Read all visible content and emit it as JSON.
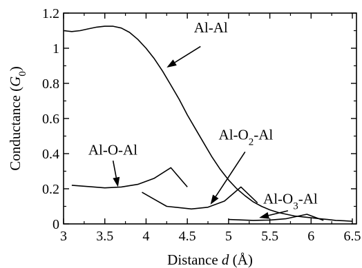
{
  "chart_data": {
    "type": "line",
    "xlabel_pre": "Distance ",
    "xlabel_var": "d",
    "xlabel_post": " (Å)",
    "ylabel_pre": "Conductance (",
    "ylabel_var": "G",
    "ylabel_sub": "0",
    "ylabel_post": ")",
    "xlim": [
      3,
      6.55
    ],
    "ylim": [
      0,
      1.2
    ],
    "xticks": [
      3,
      3.5,
      4,
      4.5,
      5,
      5.5,
      6,
      6.5
    ],
    "xtick_labels": [
      "3",
      "3.5",
      "4",
      "4.5",
      "5",
      "5.5",
      "6",
      "6.5"
    ],
    "yticks": [
      0,
      0.2,
      0.4,
      0.6,
      0.8,
      1.0,
      1.2
    ],
    "ytick_labels": [
      "0",
      "0.2",
      "0.4",
      "0.6",
      "0.8",
      "1",
      "1.2"
    ],
    "grid": false,
    "legend": "none",
    "series": [
      {
        "id": "al-al",
        "segments": [
          [
            [
              3.0,
              1.1
            ],
            [
              3.1,
              1.095
            ],
            [
              3.2,
              1.1
            ],
            [
              3.3,
              1.11
            ],
            [
              3.4,
              1.12
            ],
            [
              3.5,
              1.125
            ],
            [
              3.6,
              1.125
            ],
            [
              3.7,
              1.115
            ],
            [
              3.8,
              1.09
            ],
            [
              3.9,
              1.05
            ],
            [
              4.0,
              1.0
            ],
            [
              4.1,
              0.94
            ],
            [
              4.2,
              0.87
            ],
            [
              4.3,
              0.79
            ],
            [
              4.4,
              0.71
            ],
            [
              4.5,
              0.62
            ],
            [
              4.6,
              0.54
            ],
            [
              4.7,
              0.46
            ],
            [
              4.8,
              0.38
            ],
            [
              4.9,
              0.31
            ],
            [
              5.0,
              0.25
            ],
            [
              5.1,
              0.2
            ],
            [
              5.2,
              0.16
            ],
            [
              5.3,
              0.125
            ],
            [
              5.4,
              0.1
            ],
            [
              5.5,
              0.08
            ],
            [
              5.6,
              0.065
            ],
            [
              5.7,
              0.055
            ],
            [
              5.8,
              0.045
            ],
            [
              5.9,
              0.04
            ],
            [
              6.0,
              0.035
            ],
            [
              6.1,
              0.03
            ],
            [
              6.2,
              0.025
            ],
            [
              6.3,
              0.02
            ],
            [
              6.4,
              0.018
            ],
            [
              6.5,
              0.015
            ]
          ]
        ]
      },
      {
        "id": "al-o-al",
        "segments": [
          [
            [
              3.1,
              0.22
            ],
            [
              3.5,
              0.205
            ],
            [
              3.7,
              0.21
            ],
            [
              3.9,
              0.225
            ],
            [
              4.1,
              0.26
            ],
            [
              4.3,
              0.32
            ],
            [
              4.5,
              0.21
            ]
          ]
        ]
      },
      {
        "id": "al-o2-al",
        "segments": [
          [
            [
              3.95,
              0.18
            ],
            [
              4.1,
              0.14
            ],
            [
              4.25,
              0.1
            ],
            [
              4.55,
              0.085
            ],
            [
              4.75,
              0.095
            ],
            [
              4.95,
              0.13
            ],
            [
              5.15,
              0.21
            ],
            [
              5.35,
              0.12
            ]
          ]
        ]
      },
      {
        "id": "al-o3-al",
        "segments": [
          [
            [
              5.0,
              0.025
            ],
            [
              5.3,
              0.02
            ],
            [
              5.5,
              0.022
            ],
            [
              5.7,
              0.03
            ],
            [
              5.95,
              0.055
            ],
            [
              6.15,
              0.02
            ]
          ]
        ]
      }
    ],
    "annotations": [
      {
        "id": "al-al",
        "pre": "Al-Al",
        "sub": "",
        "post": "",
        "text_x": 4.58,
        "text_y": 1.09,
        "arrow_from": [
          4.66,
          1.01
        ],
        "arrow_to": [
          4.25,
          0.89
        ]
      },
      {
        "id": "al-o-al",
        "pre": "Al-O-Al",
        "sub": "",
        "post": "",
        "text_x": 3.3,
        "text_y": 0.395,
        "arrow_from": [
          3.6,
          0.36
        ],
        "arrow_to": [
          3.66,
          0.21
        ]
      },
      {
        "id": "al-o2-al",
        "pre": "Al-O",
        "sub": "2",
        "post": "-Al",
        "text_x": 4.88,
        "text_y": 0.48,
        "arrow_from": [
          5.2,
          0.41
        ],
        "arrow_to": [
          4.78,
          0.11
        ]
      },
      {
        "id": "al-o3-al",
        "pre": "Al-O",
        "sub": "3",
        "post": "-Al",
        "text_x": 5.42,
        "text_y": 0.115,
        "arrow_from": [
          5.72,
          0.075
        ],
        "arrow_to": [
          5.37,
          0.035
        ]
      }
    ]
  }
}
